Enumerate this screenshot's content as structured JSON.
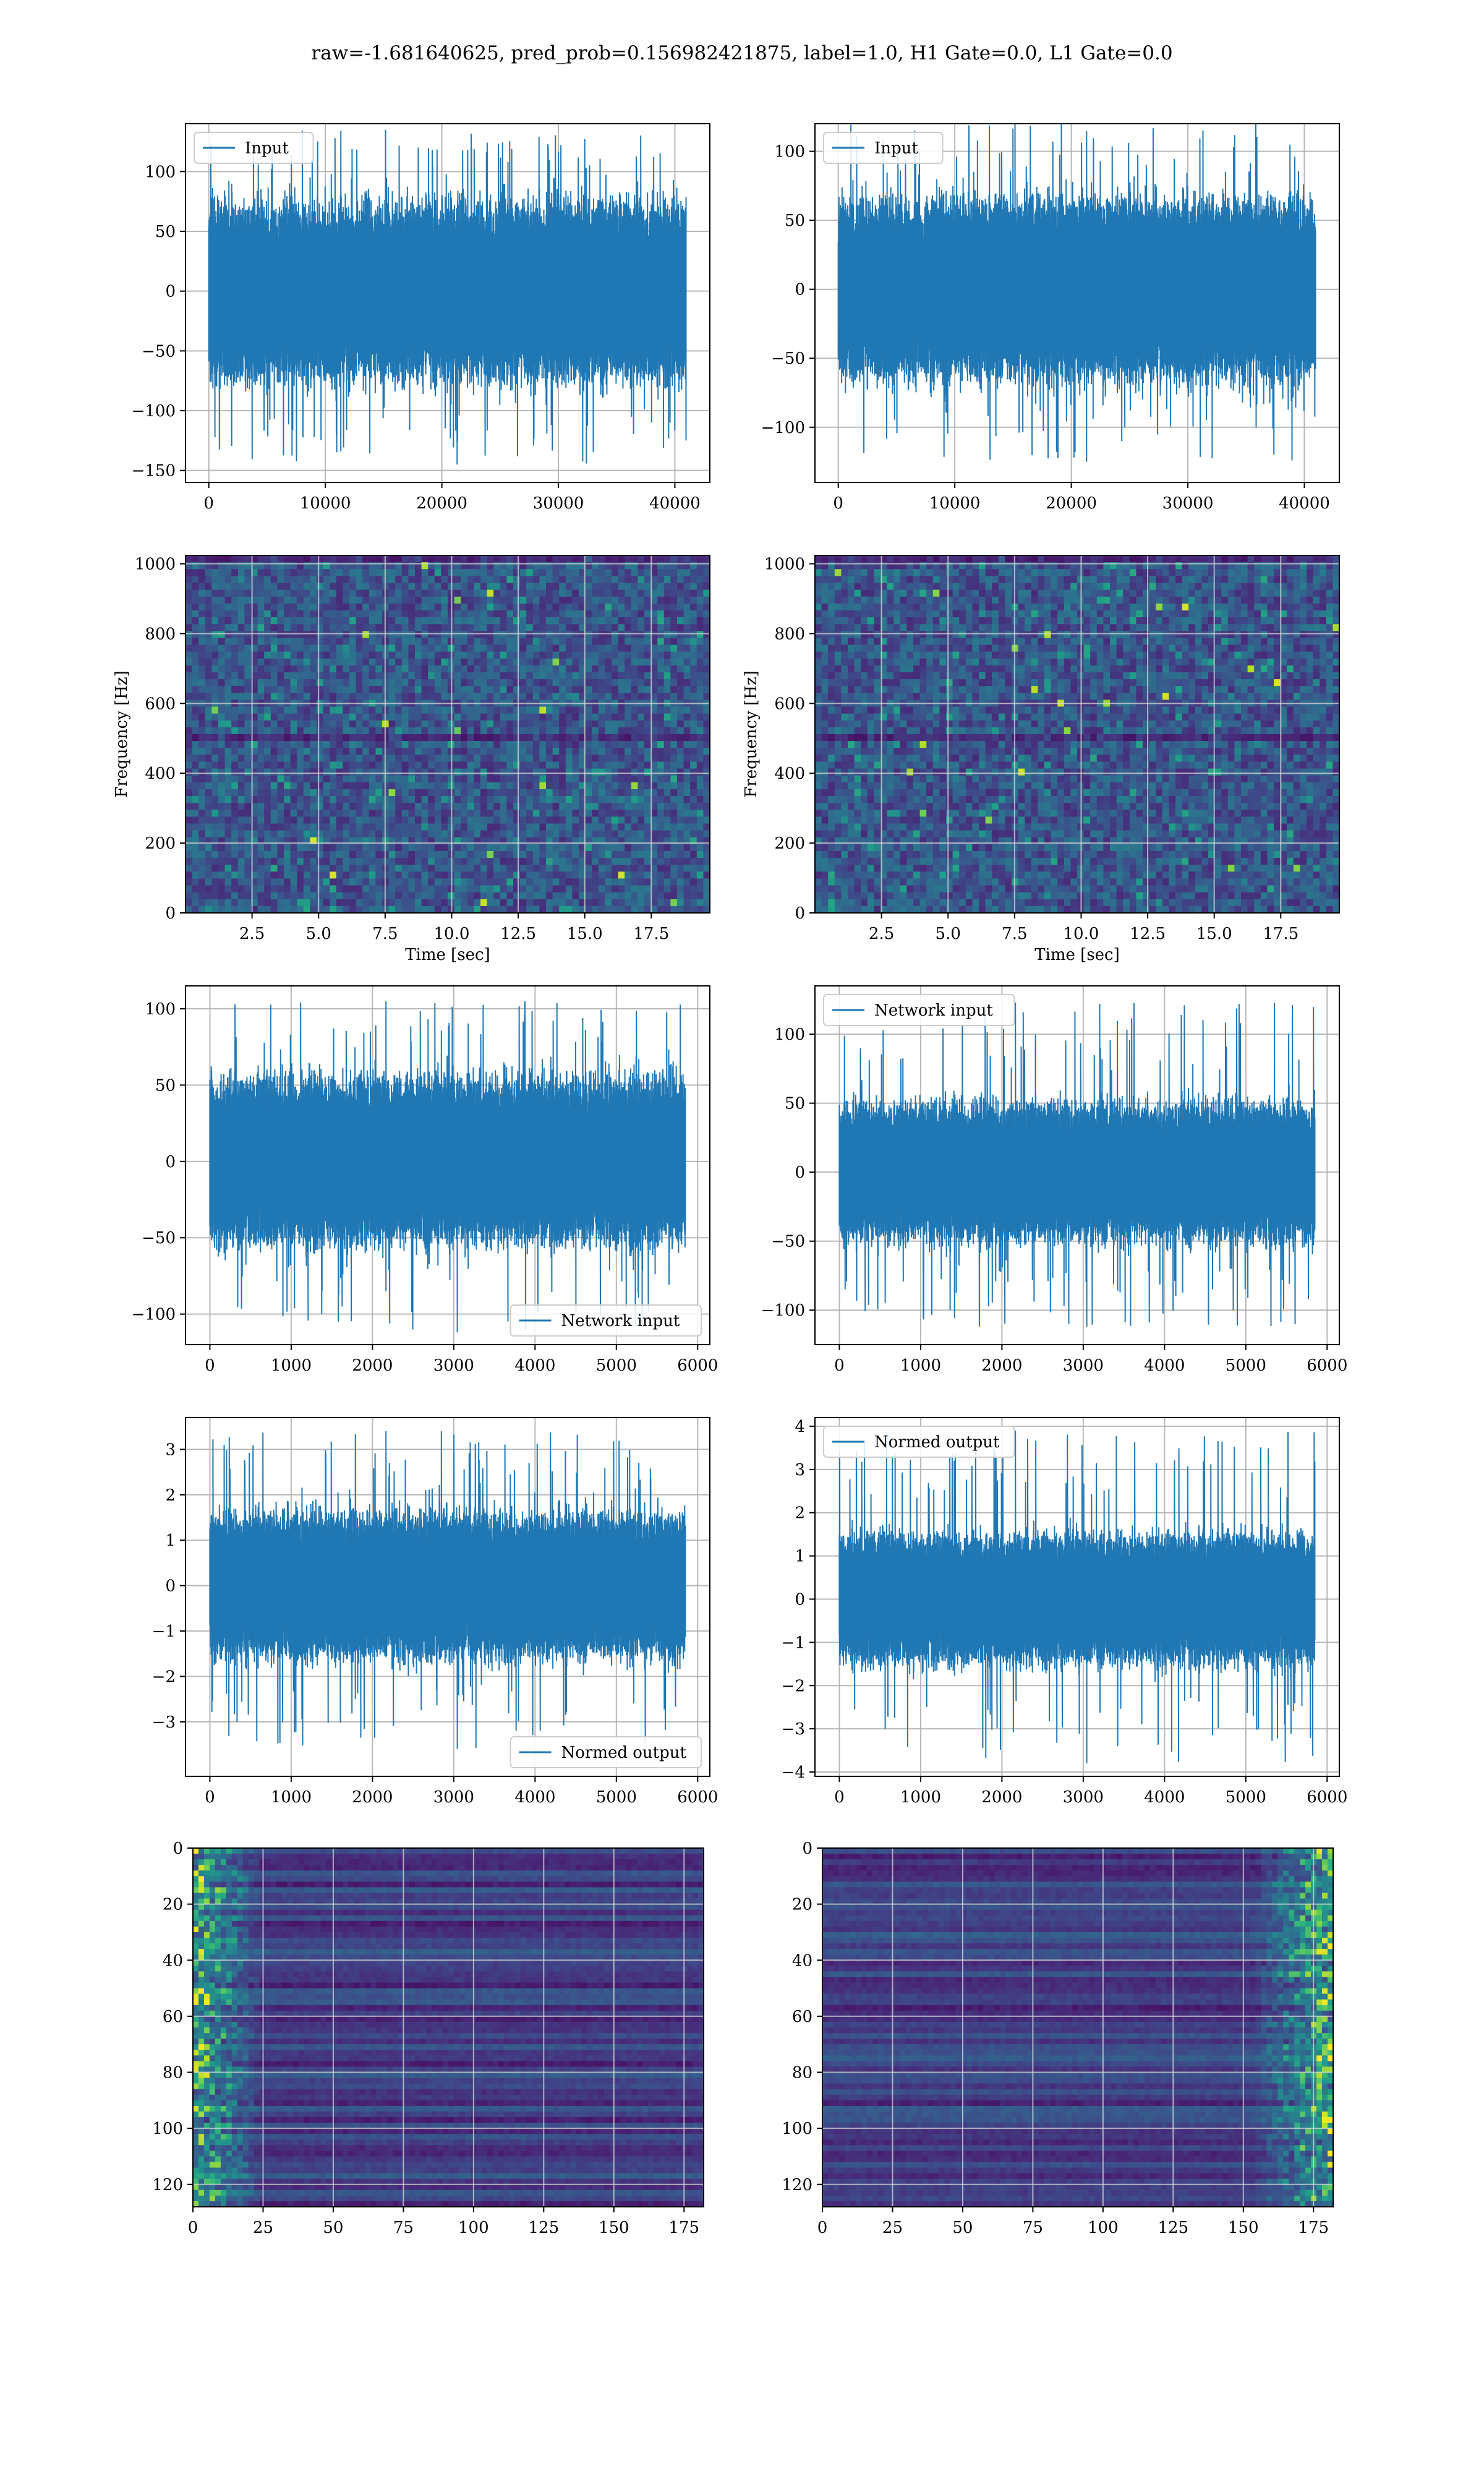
{
  "suptitle": "raw=-1.681640625, pred_prob=0.156982421875, label=1.0, H1 Gate=0.0, L1 Gate=0.0",
  "colors": {
    "line": "#1f77b4",
    "grid": "#b0b0b0",
    "axes": "#000000"
  },
  "colormap": "viridis",
  "chart_data": [
    {
      "id": "h1-input",
      "type": "line",
      "detector_column": "left",
      "legend": [
        "Input"
      ],
      "legend_loc": "upper left",
      "xlim": [
        -2000,
        43000
      ],
      "ylim": [
        -160,
        140
      ],
      "xticks": [
        0,
        10000,
        20000,
        30000,
        40000
      ],
      "yticks": [
        -150,
        -100,
        -50,
        0,
        50,
        100
      ],
      "xticklabels": [
        "0",
        "10000",
        "20000",
        "30000",
        "40000"
      ],
      "yticklabels": [
        "−150",
        "−100",
        "−50",
        "0",
        "50",
        "100"
      ],
      "series": [
        {
          "name": "Input",
          "n": 40960,
          "typical_band": [
            -75,
            75
          ],
          "peak": 135,
          "trough": -145
        }
      ]
    },
    {
      "id": "l1-input",
      "type": "line",
      "detector_column": "right",
      "legend": [
        "Input"
      ],
      "legend_loc": "upper left",
      "xlim": [
        -2000,
        43000
      ],
      "ylim": [
        -140,
        120
      ],
      "xticks": [
        0,
        10000,
        20000,
        30000,
        40000
      ],
      "yticks": [
        -100,
        -50,
        0,
        50,
        100
      ],
      "xticklabels": [
        "0",
        "10000",
        "20000",
        "30000",
        "40000"
      ],
      "yticklabels": [
        "−100",
        "−50",
        "0",
        "50",
        "100"
      ],
      "series": [
        {
          "name": "Input",
          "n": 40960,
          "typical_band": [
            -65,
            65
          ],
          "peak": 122,
          "trough": -125
        }
      ]
    },
    {
      "id": "h1-spectrogram",
      "type": "heatmap",
      "detector_column": "left",
      "xlabel": "Time [sec]",
      "ylabel": "Frequency [Hz]",
      "xlim": [
        0,
        19.7
      ],
      "ylim": [
        0,
        1024
      ],
      "xticks": [
        2.5,
        5.0,
        7.5,
        10.0,
        12.5,
        15.0,
        17.5
      ],
      "yticks": [
        0,
        200,
        400,
        600,
        800,
        1000
      ],
      "xticklabels": [
        "2.5",
        "5.0",
        "7.5",
        "10.0",
        "12.5",
        "15.0",
        "17.5"
      ],
      "yticklabels": [
        "0",
        "200",
        "400",
        "600",
        "800",
        "1000"
      ],
      "dark_band_hz": [
        490,
        520
      ]
    },
    {
      "id": "l1-spectrogram",
      "type": "heatmap",
      "detector_column": "right",
      "xlabel": "Time [sec]",
      "ylabel": "Frequency [Hz]",
      "xlim": [
        0,
        19.7
      ],
      "ylim": [
        0,
        1024
      ],
      "xticks": [
        2.5,
        5.0,
        7.5,
        10.0,
        12.5,
        15.0,
        17.5
      ],
      "yticks": [
        0,
        200,
        400,
        600,
        800,
        1000
      ],
      "xticklabels": [
        "2.5",
        "5.0",
        "7.5",
        "10.0",
        "12.5",
        "15.0",
        "17.5"
      ],
      "yticklabels": [
        "0",
        "200",
        "400",
        "600",
        "800",
        "1000"
      ],
      "dark_band_hz": [
        490,
        520
      ]
    },
    {
      "id": "h1-network-input",
      "type": "line",
      "detector_column": "left",
      "legend": [
        "Network input"
      ],
      "legend_loc": "lower right",
      "xlim": [
        -300,
        6150
      ],
      "ylim": [
        -120,
        115
      ],
      "xticks": [
        0,
        1000,
        2000,
        3000,
        4000,
        5000,
        6000
      ],
      "yticks": [
        -100,
        -50,
        0,
        50,
        100
      ],
      "xticklabels": [
        "0",
        "1000",
        "2000",
        "3000",
        "4000",
        "5000",
        "6000"
      ],
      "yticklabels": [
        "−100",
        "−50",
        "0",
        "50",
        "100"
      ],
      "series": [
        {
          "name": "Network input",
          "n": 5850,
          "typical_band": [
            -55,
            55
          ],
          "peak": 105,
          "trough": -112
        }
      ]
    },
    {
      "id": "l1-network-input",
      "type": "line",
      "detector_column": "right",
      "legend": [
        "Network input"
      ],
      "legend_loc": "upper left",
      "xlim": [
        -300,
        6150
      ],
      "ylim": [
        -125,
        135
      ],
      "xticks": [
        0,
        1000,
        2000,
        3000,
        4000,
        5000,
        6000
      ],
      "yticks": [
        -100,
        -50,
        0,
        50,
        100
      ],
      "xticklabels": [
        "0",
        "1000",
        "2000",
        "3000",
        "4000",
        "5000",
        "6000"
      ],
      "yticklabels": [
        "−100",
        "−50",
        "0",
        "50",
        "100"
      ],
      "series": [
        {
          "name": "Network input",
          "n": 5850,
          "typical_band": [
            -50,
            50
          ],
          "peak": 123,
          "trough": -112
        }
      ]
    },
    {
      "id": "h1-normed-output",
      "type": "line",
      "detector_column": "left",
      "legend": [
        "Normed output"
      ],
      "legend_loc": "lower right",
      "xlim": [
        -300,
        6150
      ],
      "ylim": [
        -4.2,
        3.7
      ],
      "xticks": [
        0,
        1000,
        2000,
        3000,
        4000,
        5000,
        6000
      ],
      "yticks": [
        -3,
        -2,
        -1,
        0,
        1,
        2,
        3
      ],
      "xticklabels": [
        "0",
        "1000",
        "2000",
        "3000",
        "4000",
        "5000",
        "6000"
      ],
      "yticklabels": [
        "−3",
        "−2",
        "−1",
        "0",
        "1",
        "2",
        "3"
      ],
      "series": [
        {
          "name": "Normed output",
          "n": 5850,
          "typical_band": [
            -1.6,
            1.6
          ],
          "peak": 3.4,
          "trough": -3.6
        }
      ]
    },
    {
      "id": "l1-normed-output",
      "type": "line",
      "detector_column": "right",
      "legend": [
        "Normed output"
      ],
      "legend_loc": "upper left",
      "xlim": [
        -300,
        6150
      ],
      "ylim": [
        -4.1,
        4.2
      ],
      "xticks": [
        0,
        1000,
        2000,
        3000,
        4000,
        5000,
        6000
      ],
      "yticks": [
        -4,
        -3,
        -2,
        -1,
        0,
        1,
        2,
        3,
        4
      ],
      "xticklabels": [
        "0",
        "1000",
        "2000",
        "3000",
        "4000",
        "5000",
        "6000"
      ],
      "yticklabels": [
        "−4",
        "−3",
        "−2",
        "−1",
        "0",
        "1",
        "2",
        "3",
        "4"
      ],
      "series": [
        {
          "name": "Normed output",
          "n": 5850,
          "typical_band": [
            -1.5,
            1.5
          ],
          "peak": 3.9,
          "trough": -3.8
        }
      ]
    },
    {
      "id": "h1-feature-map",
      "type": "heatmap",
      "detector_column": "left",
      "xlim": [
        0,
        182
      ],
      "ylim": [
        128,
        0
      ],
      "xticks": [
        0,
        25,
        50,
        75,
        100,
        125,
        150,
        175
      ],
      "yticks": [
        0,
        20,
        40,
        60,
        80,
        100,
        120
      ],
      "xticklabels": [
        "0",
        "25",
        "50",
        "75",
        "100",
        "125",
        "150",
        "175"
      ],
      "yticklabels": [
        "0",
        "20",
        "40",
        "60",
        "80",
        "100",
        "120"
      ],
      "bright_region": "left-edge"
    },
    {
      "id": "l1-feature-map",
      "type": "heatmap",
      "detector_column": "right",
      "xlim": [
        0,
        182
      ],
      "ylim": [
        128,
        0
      ],
      "xticks": [
        0,
        25,
        50,
        75,
        100,
        125,
        150,
        175
      ],
      "yticks": [
        0,
        20,
        40,
        60,
        80,
        100,
        120
      ],
      "xticklabels": [
        "0",
        "25",
        "50",
        "75",
        "100",
        "125",
        "150",
        "175"
      ],
      "yticklabels": [
        "0",
        "20",
        "40",
        "60",
        "80",
        "100",
        "120"
      ],
      "bright_region": "right-edge"
    }
  ]
}
